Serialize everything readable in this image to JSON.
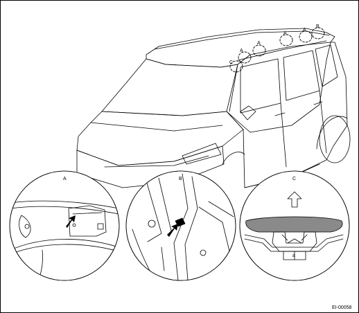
{
  "callouts": {
    "A": "A",
    "B": "B",
    "C": "C"
  },
  "detail_labels": {
    "a": "a"
  },
  "figure_code": "EI-00058"
}
